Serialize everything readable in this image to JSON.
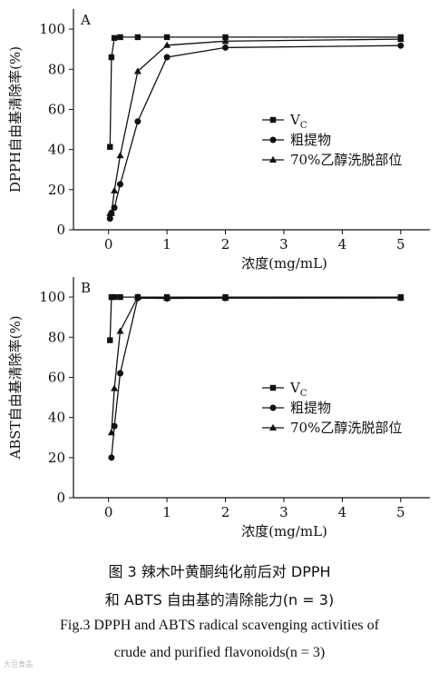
{
  "chart_data": [
    {
      "type": "line",
      "panel_label": "A",
      "ylabel": "DPPH自由基清除率(%)",
      "xlabel": "浓度(mg/mL)",
      "xlim": [
        -0.6,
        5.5
      ],
      "ylim": [
        0,
        110
      ],
      "x_ticks": [
        "0",
        "1",
        "2",
        "3",
        "4",
        "5"
      ],
      "y_ticks": [
        "0",
        "20",
        "40",
        "60",
        "80",
        "100"
      ],
      "legend_position": "right-middle",
      "series": [
        {
          "name": "V",
          "name_sub": "C",
          "marker": "square",
          "x": [
            0.025,
            0.05,
            0.1,
            0.2,
            0.5,
            1,
            2,
            5
          ],
          "y": [
            41.3,
            86,
            95.6,
            96,
            96,
            96,
            96,
            96
          ]
        },
        {
          "name": "粗提物",
          "marker": "circle",
          "x": [
            0.025,
            0.05,
            0.1,
            0.2,
            0.5,
            1,
            2,
            5
          ],
          "y": [
            5.6,
            8.3,
            11,
            22.7,
            54,
            86,
            90.8,
            91.8
          ]
        },
        {
          "name": "70%乙醇洗脱部位",
          "marker": "triangle",
          "x": [
            0.025,
            0.05,
            0.1,
            0.2,
            0.5,
            1,
            2,
            5
          ],
          "y": [
            8.2,
            8.3,
            19.5,
            37,
            79,
            92,
            94,
            95
          ]
        }
      ]
    },
    {
      "type": "line",
      "panel_label": "B",
      "ylabel": "ABST自由基清除率(%)",
      "xlabel": "浓度(mg/mL)",
      "xlim": [
        -0.6,
        5.5
      ],
      "ylim": [
        0,
        110
      ],
      "x_ticks": [
        "0",
        "1",
        "2",
        "3",
        "4",
        "5"
      ],
      "y_ticks": [
        "0",
        "20",
        "40",
        "60",
        "80",
        "100"
      ],
      "legend_position": "right-middle",
      "series": [
        {
          "name": "V",
          "name_sub": "C",
          "marker": "square",
          "x": [
            0.025,
            0.05,
            0.1,
            0.2,
            0.5,
            1,
            2,
            5
          ],
          "y": [
            78.5,
            100,
            100,
            100,
            100,
            100,
            100,
            100
          ]
        },
        {
          "name": "粗提物",
          "marker": "circle",
          "x": [
            0.05,
            0.1,
            0.2,
            0.5,
            1,
            2,
            5
          ],
          "y": [
            20,
            35.7,
            62,
            99.5,
            99.3,
            99.5,
            99.6
          ]
        },
        {
          "name": "70%乙醇洗脱部位",
          "marker": "triangle",
          "x": [
            0.05,
            0.1,
            0.2,
            0.5,
            1,
            2,
            5
          ],
          "y": [
            32.5,
            54.5,
            83,
            100,
            99.6,
            99.6,
            99.6
          ]
        }
      ]
    }
  ],
  "caption": {
    "cn_line1": "图 3    辣木叶黄酮纯化前后对 DPPH",
    "cn_line2": "和 ABTS 自由基的清除能力(n = 3)",
    "en_line1": "Fig.3    DPPH and ABTS radical scavenging activities of",
    "en_line2": "crude and purified flavonoids(n = 3)"
  },
  "watermark": "大豆食品"
}
